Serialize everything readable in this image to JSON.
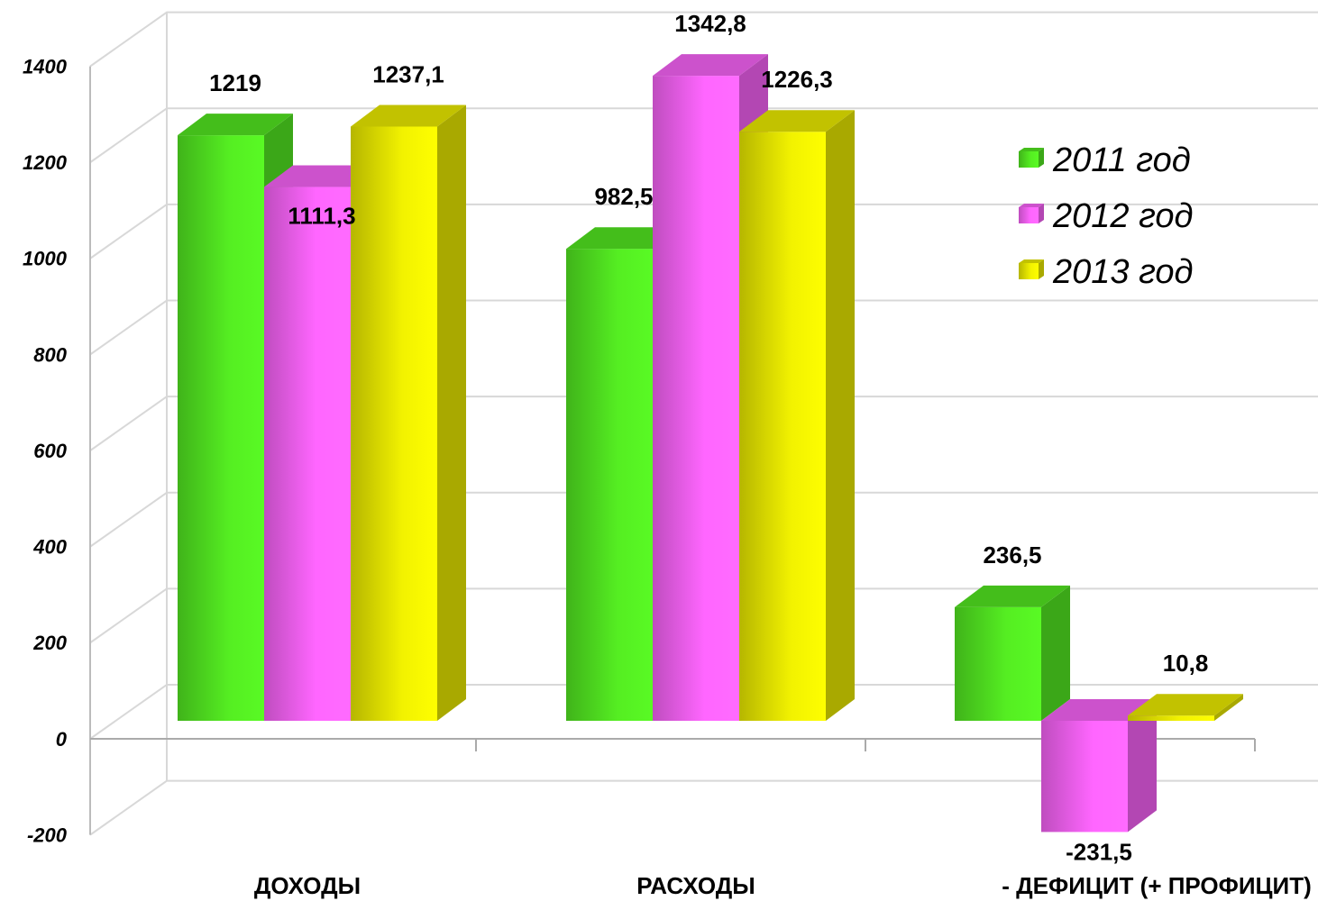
{
  "chart_data": {
    "type": "bar3d",
    "categories": [
      "ДОХОДЫ",
      "РАСХОДЫ",
      "- ДЕФИЦИТ  (+ ПРОФИЦИТ)"
    ],
    "series": [
      {
        "name": "2011 год",
        "color": "#55ee22",
        "values": [
          1219,
          982.5,
          236.5
        ],
        "value_labels": [
          "1219",
          "982,5",
          "236,5"
        ]
      },
      {
        "name": "2012 год",
        "color": "#ff66ff",
        "values": [
          1111.3,
          1342.8,
          -231.5
        ],
        "value_labels": [
          "1111,3",
          "1342,8",
          "-231,5"
        ]
      },
      {
        "name": "2013 год",
        "color": "#f2f200",
        "values": [
          1237.1,
          1226.3,
          10.8
        ],
        "value_labels": [
          "1237,1",
          "1226,3",
          "10,8"
        ]
      }
    ],
    "ylim": [
      -200,
      1400
    ],
    "yticks": [
      -200,
      0,
      200,
      400,
      600,
      800,
      1000,
      1200,
      1400
    ],
    "grid": true,
    "legend": "right"
  }
}
